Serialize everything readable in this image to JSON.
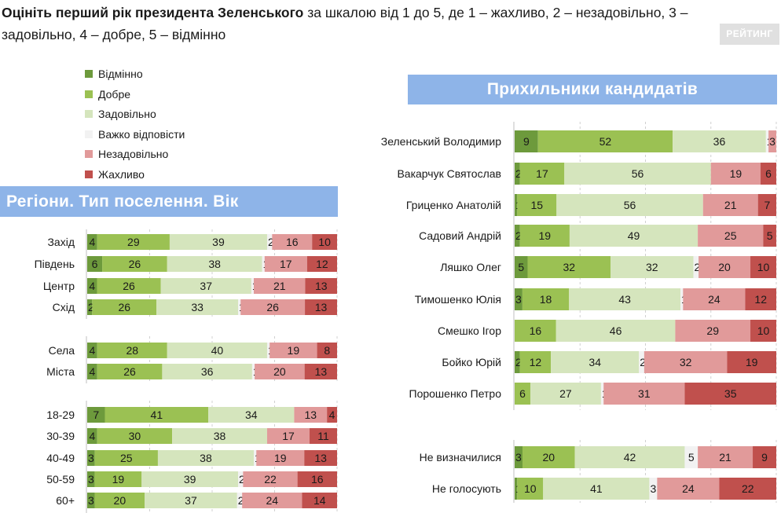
{
  "header": {
    "question_bold": "Оцініть перший рік президента Зеленського",
    "question_rest": " за шкалою від 1 до 5, де 1 – жахливо, 2 – незадовільно, 3 – задовільно, 4 – добре, 5 – відмінно",
    "brand": "РЕЙТИНГ"
  },
  "colors": {
    "excellent": "#6d9a3c",
    "good": "#9bc153",
    "satisfactory": "#d5e5bd",
    "hard_to_say": "#f2f2f2",
    "unsatisfactory": "#e19a9a",
    "terrible": "#c0504d"
  },
  "chart_data": [
    {
      "type": "bar",
      "stacked": "horizontal-100",
      "title": "Регіони. Тип поселення. Вік",
      "legend_position": "top-left",
      "series_names": [
        "Відмінно",
        "Добре",
        "Задовільно",
        "Важко відповісти",
        "Незадовільно",
        "Жахливо"
      ],
      "groups": [
        [
          "Захід",
          "Південь",
          "Центр",
          "Схід"
        ],
        [
          "Села",
          "Міста"
        ],
        [
          "18-29",
          "30-39",
          "40-49",
          "50-59",
          "60+"
        ]
      ],
      "rows": [
        {
          "label": "Захід",
          "values": [
            4,
            29,
            39,
            2,
            16,
            10
          ]
        },
        {
          "label": "Південь",
          "values": [
            6,
            26,
            38,
            1,
            17,
            12
          ]
        },
        {
          "label": "Центр",
          "values": [
            4,
            26,
            37,
            1,
            21,
            13
          ]
        },
        {
          "label": "Схід",
          "values": [
            2,
            26,
            33,
            1,
            26,
            13
          ]
        },
        {
          "label": "Села",
          "values": [
            4,
            28,
            40,
            1,
            19,
            8
          ]
        },
        {
          "label": "Міста",
          "values": [
            4,
            26,
            36,
            1,
            20,
            13
          ]
        },
        {
          "label": "18-29",
          "values": [
            7,
            41,
            34,
            0,
            13,
            4
          ]
        },
        {
          "label": "30-39",
          "values": [
            4,
            30,
            38,
            0,
            17,
            11
          ]
        },
        {
          "label": "40-49",
          "values": [
            3,
            25,
            38,
            1,
            19,
            13
          ]
        },
        {
          "label": "50-59",
          "values": [
            3,
            19,
            39,
            2,
            22,
            16
          ]
        },
        {
          "label": "60+",
          "values": [
            3,
            20,
            37,
            2,
            24,
            14
          ]
        }
      ]
    },
    {
      "type": "bar",
      "stacked": "horizontal-100",
      "title": "Прихильники кандидатів",
      "series_names": [
        "Відмінно",
        "Добре",
        "Задовільно",
        "Важко відповісти",
        "Незадовільно",
        "Жахливо"
      ],
      "groups": [
        [
          "Зеленський Володимир",
          "Вакарчук Святослав",
          "Гриценко Анатолій",
          "Садовий Андрій",
          "Ляшко Олег",
          "Тимошенко Юлія",
          "Смешко Ігор",
          "Бойко Юрій",
          "Порошенко Петро"
        ],
        [
          "Не визначилися",
          "Не голосують"
        ]
      ],
      "rows": [
        {
          "label": "Зеленський Володимир",
          "values": [
            9,
            52,
            36,
            1,
            3,
            0
          ]
        },
        {
          "label": "Вакарчук Святослав",
          "values": [
            2,
            17,
            56,
            0,
            19,
            6
          ]
        },
        {
          "label": "Гриценко Анатолій",
          "values": [
            1,
            15,
            56,
            0,
            21,
            7
          ]
        },
        {
          "label": "Садовий Андрій",
          "values": [
            2,
            19,
            49,
            0,
            25,
            5
          ]
        },
        {
          "label": "Ляшко Олег",
          "values": [
            5,
            32,
            32,
            2,
            20,
            10
          ]
        },
        {
          "label": "Тимошенко Юлія",
          "values": [
            3,
            18,
            43,
            1,
            24,
            12
          ]
        },
        {
          "label": "Смешко Ігор",
          "values": [
            0,
            16,
            46,
            0,
            29,
            10
          ]
        },
        {
          "label": "Бойко Юрій",
          "values": [
            2,
            12,
            34,
            2,
            32,
            19
          ]
        },
        {
          "label": "Порошенко Петро",
          "values": [
            0,
            6,
            27,
            1,
            31,
            35
          ]
        },
        {
          "label": "Не визначилися",
          "values": [
            3,
            20,
            42,
            5,
            21,
            9
          ]
        },
        {
          "label": "Не голосують",
          "values": [
            1,
            10,
            41,
            3,
            24,
            22
          ]
        }
      ]
    }
  ]
}
